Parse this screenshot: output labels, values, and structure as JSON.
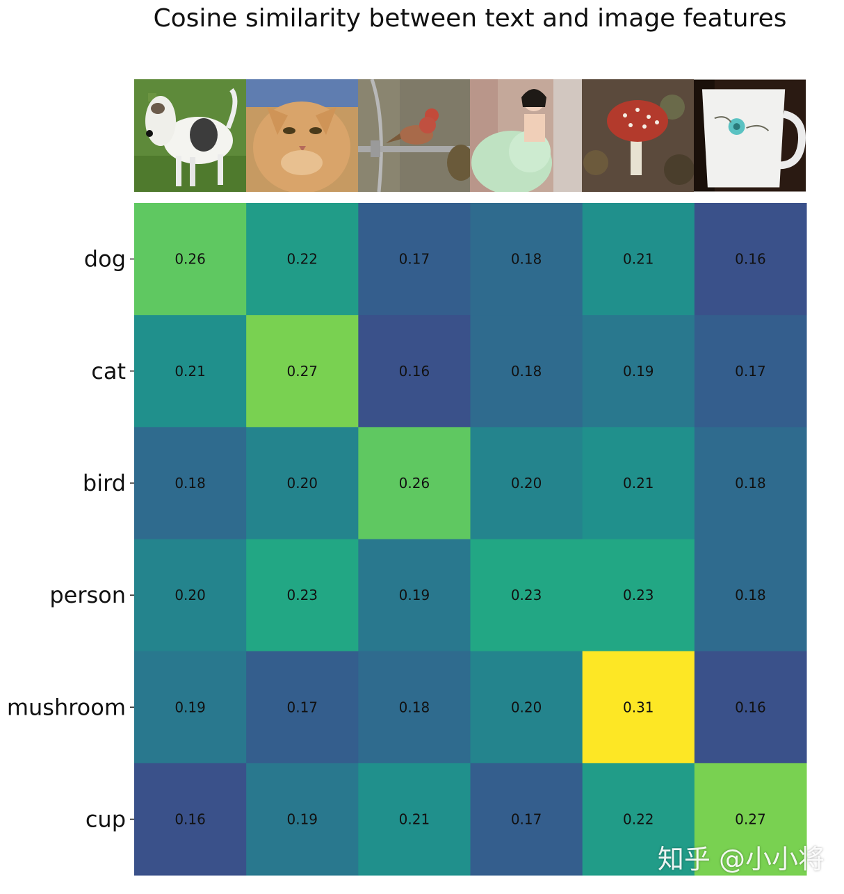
{
  "chart_data": {
    "type": "heatmap",
    "title": "Cosine similarity between text and image features",
    "rows": [
      "dog",
      "cat",
      "bird",
      "person",
      "mushroom",
      "cup"
    ],
    "columns": [
      "dog",
      "cat",
      "bird",
      "person",
      "mushroom",
      "cup"
    ],
    "values": [
      [
        0.26,
        0.22,
        0.17,
        0.18,
        0.21,
        0.16
      ],
      [
        0.21,
        0.27,
        0.16,
        0.18,
        0.19,
        0.17
      ],
      [
        0.18,
        0.2,
        0.26,
        0.2,
        0.21,
        0.18
      ],
      [
        0.2,
        0.23,
        0.19,
        0.23,
        0.23,
        0.18
      ],
      [
        0.19,
        0.17,
        0.18,
        0.2,
        0.31,
        0.16
      ],
      [
        0.16,
        0.19,
        0.21,
        0.17,
        0.22,
        0.27
      ]
    ],
    "value_range": [
      0.16,
      0.31
    ],
    "colormap": "viridis"
  },
  "images": [
    {
      "icon": "dog-photo-icon"
    },
    {
      "icon": "cat-photo-icon"
    },
    {
      "icon": "bird-photo-icon"
    },
    {
      "icon": "person-photo-icon"
    },
    {
      "icon": "mushroom-photo-icon"
    },
    {
      "icon": "cup-photo-icon"
    }
  ],
  "watermark": "知乎 @小小将"
}
